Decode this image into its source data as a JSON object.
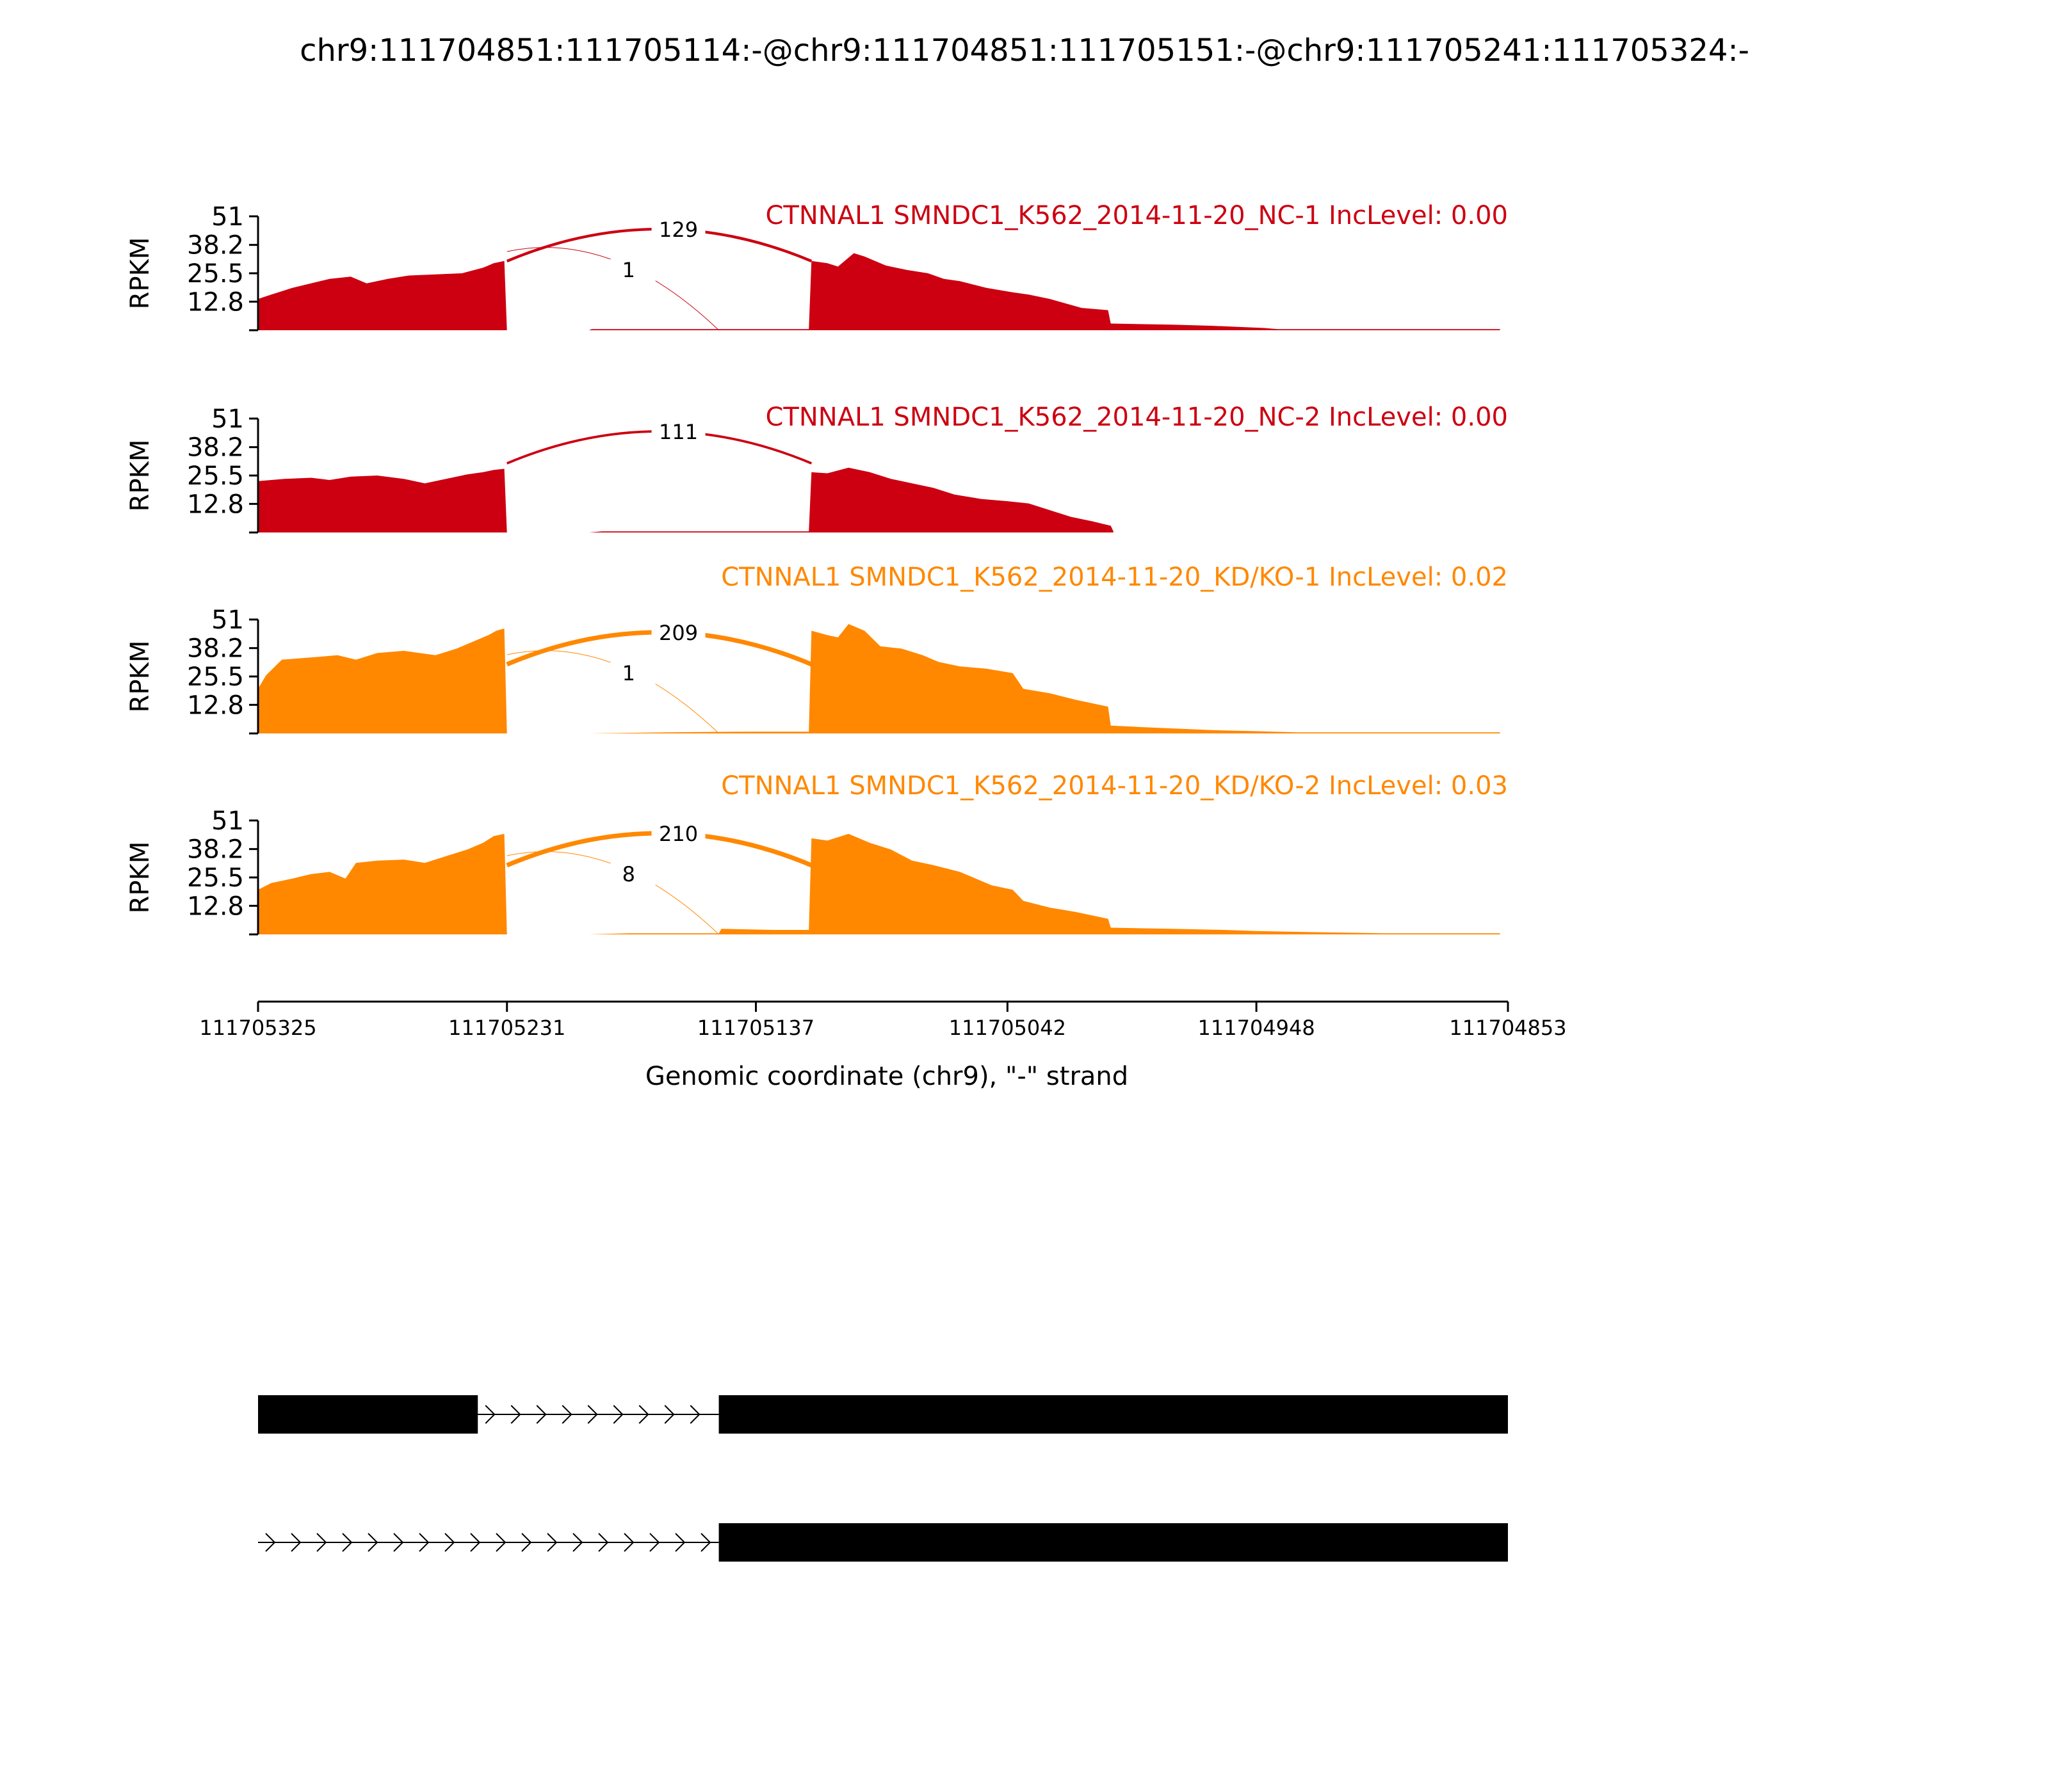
{
  "figure": {
    "title": "chr9:111704851:111705114:-@chr9:111704851:111705151:-@chr9:111705241:111705324:-",
    "xlabel": "Genomic coordinate (chr9), \"-\" strand",
    "ylabel": "RPKM",
    "colors": {
      "nc": "#cc0011",
      "kd": "#ff8800",
      "text": "#000000"
    }
  },
  "chart_data": {
    "type": "area",
    "x_axis": {
      "range": [
        111705325,
        111704853
      ],
      "reversed": true,
      "ticks": [
        111705325,
        111705231,
        111705137,
        111705042,
        111704948,
        111704853
      ],
      "tick_labels": [
        "111705325",
        "111705231",
        "111705137",
        "111705042",
        "111704948",
        "111704853"
      ]
    },
    "y_axis": {
      "range": [
        0,
        51
      ],
      "ticks": [
        12.8,
        25.5,
        38.2,
        51
      ],
      "tick_labels": [
        "12.8",
        "25.5",
        "38.2",
        "51"
      ]
    },
    "series": [
      {
        "name": "CTNNAL1 SMNDC1_K562_2014-11-20_NC-1 IncLevel: 0.00",
        "color": "#cc0011",
        "coverage": [
          [
            111705325,
            14
          ],
          [
            111705320,
            16
          ],
          [
            111705312,
            19
          ],
          [
            111705305,
            21
          ],
          [
            111705298,
            23
          ],
          [
            111705290,
            24
          ],
          [
            111705284,
            21
          ],
          [
            111705276,
            23
          ],
          [
            111705268,
            24.5
          ],
          [
            111705258,
            25
          ],
          [
            111705248,
            25.5
          ],
          [
            111705240,
            28
          ],
          [
            111705236,
            30
          ],
          [
            111705232,
            31
          ],
          [
            111705231,
            0
          ],
          [
            111705200,
            0
          ],
          [
            111705199,
            0.5
          ],
          [
            111705156,
            0.5
          ],
          [
            111705117,
            0.5
          ],
          [
            111705116,
            31
          ],
          [
            111705110,
            30
          ],
          [
            111705106,
            28.5
          ],
          [
            111705100,
            34.5
          ],
          [
            111705096,
            33
          ],
          [
            111705088,
            29
          ],
          [
            111705080,
            27
          ],
          [
            111705072,
            25.5
          ],
          [
            111705066,
            23
          ],
          [
            111705060,
            22
          ],
          [
            111705050,
            19
          ],
          [
            111705040,
            17
          ],
          [
            111705034,
            16
          ],
          [
            111705026,
            14
          ],
          [
            111705014,
            10
          ],
          [
            111705004,
            9
          ],
          [
            111705003,
            3
          ],
          [
            111704980,
            2.5
          ],
          [
            111704965,
            2
          ],
          [
            111704945,
            1
          ],
          [
            111704940,
            0.5
          ],
          [
            111704856,
            0.5
          ]
        ],
        "junctions": [
          {
            "label": "129",
            "from": 111705231,
            "to": 111705116,
            "value": 129
          },
          {
            "label": "1",
            "from": 111705231,
            "to": 111705151,
            "value": 1
          }
        ]
      },
      {
        "name": "CTNNAL1 SMNDC1_K562_2014-11-20_NC-2 IncLevel: 0.00",
        "color": "#cc0011",
        "coverage": [
          [
            111705325,
            23
          ],
          [
            111705315,
            24
          ],
          [
            111705305,
            24.5
          ],
          [
            111705298,
            23.5
          ],
          [
            111705290,
            25
          ],
          [
            111705280,
            25.5
          ],
          [
            111705270,
            24
          ],
          [
            111705262,
            22
          ],
          [
            111705254,
            24
          ],
          [
            111705246,
            26
          ],
          [
            111705240,
            27
          ],
          [
            111705236,
            28
          ],
          [
            111705232,
            28.5
          ],
          [
            111705231,
            0
          ],
          [
            111705200,
            0
          ],
          [
            111705195,
            0.5
          ],
          [
            111705117,
            0.5
          ],
          [
            111705116,
            27
          ],
          [
            111705110,
            26.5
          ],
          [
            111705102,
            29
          ],
          [
            111705094,
            27
          ],
          [
            111705086,
            24
          ],
          [
            111705078,
            22
          ],
          [
            111705070,
            20
          ],
          [
            111705062,
            17
          ],
          [
            111705052,
            15
          ],
          [
            111705042,
            14
          ],
          [
            111705034,
            13
          ],
          [
            111705026,
            10
          ],
          [
            111705018,
            7
          ],
          [
            111705010,
            5
          ],
          [
            111705003,
            3
          ],
          [
            111705002,
            0.5
          ]
        ],
        "junctions": [
          {
            "label": "111",
            "from": 111705231,
            "to": 111705116,
            "value": 111
          }
        ]
      },
      {
        "name": "CTNNAL1 SMNDC1_K562_2014-11-20_KD/KO-1 IncLevel: 0.02",
        "color": "#ff8800",
        "coverage": [
          [
            111705325,
            20
          ],
          [
            111705322,
            26
          ],
          [
            111705316,
            33
          ],
          [
            111705305,
            34
          ],
          [
            111705295,
            35
          ],
          [
            111705288,
            33
          ],
          [
            111705280,
            36
          ],
          [
            111705270,
            37
          ],
          [
            111705258,
            35
          ],
          [
            111705250,
            38
          ],
          [
            111705244,
            41
          ],
          [
            111705238,
            44
          ],
          [
            111705235,
            46
          ],
          [
            111705232,
            47
          ],
          [
            111705231,
            0
          ],
          [
            111705200,
            0
          ],
          [
            111705170,
            0.5
          ],
          [
            111705140,
            0.8
          ],
          [
            111705117,
            0.8
          ],
          [
            111705116,
            46
          ],
          [
            111705110,
            44
          ],
          [
            111705106,
            43
          ],
          [
            111705102,
            49
          ],
          [
            111705096,
            46
          ],
          [
            111705090,
            39
          ],
          [
            111705082,
            38
          ],
          [
            111705074,
            35
          ],
          [
            111705068,
            32
          ],
          [
            111705060,
            30
          ],
          [
            111705050,
            29
          ],
          [
            111705040,
            27
          ],
          [
            111705036,
            20
          ],
          [
            111705026,
            18
          ],
          [
            111705016,
            15
          ],
          [
            111705004,
            12
          ],
          [
            111705003,
            3.5
          ],
          [
            111704985,
            2.5
          ],
          [
            111704965,
            1.5
          ],
          [
            111704948,
            1
          ],
          [
            111704933,
            0.5
          ],
          [
            111704856,
            0.5
          ]
        ],
        "junctions": [
          {
            "label": "209",
            "from": 111705231,
            "to": 111705116,
            "value": 209
          },
          {
            "label": "1",
            "from": 111705231,
            "to": 111705151,
            "value": 1
          }
        ]
      },
      {
        "name": "CTNNAL1 SMNDC1_K562_2014-11-20_KD/KO-2 IncLevel: 0.03",
        "color": "#ff8800",
        "coverage": [
          [
            111705325,
            20
          ],
          [
            111705320,
            23
          ],
          [
            111705312,
            25
          ],
          [
            111705305,
            27
          ],
          [
            111705298,
            28
          ],
          [
            111705292,
            25
          ],
          [
            111705288,
            32
          ],
          [
            111705280,
            33
          ],
          [
            111705270,
            33.5
          ],
          [
            111705262,
            32
          ],
          [
            111705254,
            35
          ],
          [
            111705246,
            38
          ],
          [
            111705240,
            41
          ],
          [
            111705236,
            44
          ],
          [
            111705232,
            45
          ],
          [
            111705231,
            0
          ],
          [
            111705200,
            0
          ],
          [
            111705185,
            0.5
          ],
          [
            111705151,
            0.5
          ],
          [
            111705150,
            2.5
          ],
          [
            111705130,
            2
          ],
          [
            111705117,
            2
          ],
          [
            111705116,
            43
          ],
          [
            111705110,
            42
          ],
          [
            111705102,
            45
          ],
          [
            111705094,
            41
          ],
          [
            111705086,
            38
          ],
          [
            111705078,
            33
          ],
          [
            111705070,
            31
          ],
          [
            111705060,
            28
          ],
          [
            111705048,
            22
          ],
          [
            111705040,
            20
          ],
          [
            111705036,
            15
          ],
          [
            111705026,
            12
          ],
          [
            111705016,
            10
          ],
          [
            111705004,
            7
          ],
          [
            111705003,
            3
          ],
          [
            111704980,
            2.5
          ],
          [
            111704960,
            2
          ],
          [
            111704948,
            1.5
          ],
          [
            111704926,
            1
          ],
          [
            111704900,
            0.5
          ],
          [
            111704856,
            0.5
          ]
        ],
        "junctions": [
          {
            "label": "210",
            "from": 111705231,
            "to": 111705116,
            "value": 210
          },
          {
            "label": "8",
            "from": 111705231,
            "to": 111705151,
            "value": 8
          }
        ]
      }
    ],
    "isoforms": [
      {
        "exons": [
          [
            111705325,
            111705242
          ],
          [
            111705151,
            111704853
          ]
        ],
        "intron": [
          111705242,
          111705151
        ]
      },
      {
        "exons": [
          [
            111705151,
            111704853
          ]
        ],
        "intron": [
          111705325,
          111705151
        ]
      }
    ]
  }
}
